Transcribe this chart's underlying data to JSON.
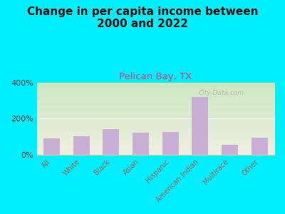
{
  "title": "Change in per capita income between\n2000 and 2022",
  "subtitle": "Pelican Bay, TX",
  "categories": [
    "All",
    "White",
    "Black",
    "Asian",
    "Hispanic",
    "American Indian",
    "Multirace",
    "Other"
  ],
  "values": [
    90,
    100,
    140,
    120,
    125,
    320,
    55,
    95
  ],
  "bar_color": "#c9aed6",
  "title_fontsize": 11,
  "subtitle_fontsize": 9.5,
  "subtitle_color": "#cc4477",
  "tick_label_color": "#996655",
  "bg_outer": "#00eeff",
  "ylim": [
    0,
    400
  ],
  "yticks": [
    0,
    200,
    400
  ],
  "ytick_labels": [
    "0%",
    "200%",
    "400%"
  ],
  "watermark": "City-Data.com",
  "chart_bg_top_left": "#cce8c0",
  "chart_bg_top_right": "#e8f0d8",
  "chart_bg_bottom": "#f0f0e0",
  "grid_line_color": "#dddddd",
  "spine_color": "#cccccc"
}
